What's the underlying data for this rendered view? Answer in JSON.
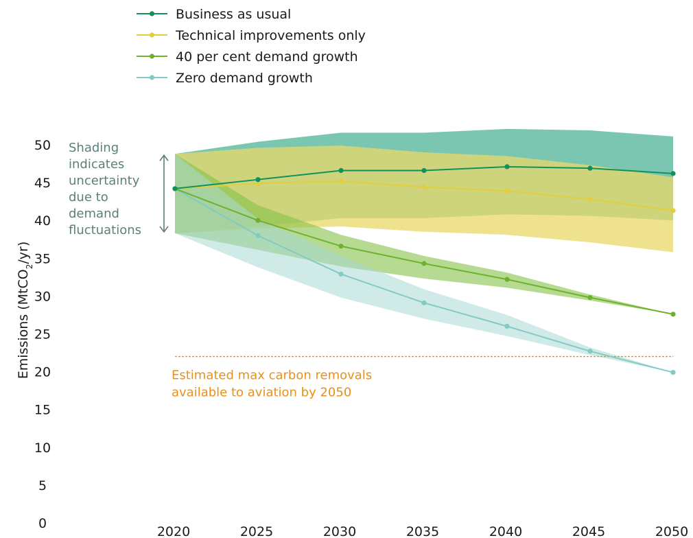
{
  "chart_data": {
    "type": "line",
    "title": "",
    "xlabel": "",
    "ylabel": "Emissions (MtCO",
    "ylabel_subscript": "2",
    "ylabel_suffix": "/yr)",
    "x": [
      2020,
      2025,
      2030,
      2035,
      2040,
      2045,
      2050
    ],
    "x_ticks": [
      "2020",
      "2025",
      "2030",
      "2035",
      "2040",
      "2045",
      "2050"
    ],
    "y_ticks": [
      "0",
      "5",
      "10",
      "15",
      "20",
      "25",
      "30",
      "35",
      "40",
      "45",
      "50"
    ],
    "xlim": [
      2020,
      2050
    ],
    "ylim": [
      0,
      50
    ],
    "grid": false,
    "legend_position": "top-left",
    "series": [
      {
        "name": "Business as usual",
        "color": "#11915a",
        "band_color": "#5ab89e",
        "values": [
          44.2,
          45.4,
          46.6,
          46.6,
          47.1,
          46.9,
          46.2
        ],
        "band_upper": [
          48.8,
          50.4,
          51.6,
          51.6,
          52.1,
          51.9,
          51.1
        ],
        "band_lower": [
          38.3,
          39.2,
          40.3,
          40.3,
          40.8,
          40.6,
          40.0
        ]
      },
      {
        "name": "Technical improvements only",
        "color": "#e3cd3f",
        "band_color": "#e9d86a",
        "values": [
          44.2,
          44.9,
          45.2,
          44.4,
          43.9,
          42.8,
          41.3
        ],
        "band_upper": [
          48.8,
          49.6,
          49.9,
          49.0,
          48.5,
          47.3,
          45.7
        ],
        "band_lower": [
          38.3,
          38.9,
          39.2,
          38.5,
          38.1,
          37.1,
          35.8
        ]
      },
      {
        "name": "40 per cent demand growth",
        "color": "#6db12e",
        "band_color": "#86c24a",
        "values": [
          44.2,
          40.0,
          36.6,
          34.3,
          32.2,
          29.8,
          27.6
        ],
        "band_upper": [
          48.8,
          42.0,
          38.1,
          35.3,
          33.1,
          30.2,
          27.6
        ],
        "band_lower": [
          38.3,
          36.1,
          33.9,
          32.3,
          31.1,
          29.4,
          27.6
        ]
      },
      {
        "name": "Zero demand growth",
        "color": "#82cac4",
        "band_color": "#a7d9d4",
        "values": [
          44.2,
          38.0,
          32.9,
          29.1,
          26.0,
          22.7,
          19.9
        ],
        "band_upper": [
          48.8,
          40.2,
          35.3,
          30.9,
          27.5,
          23.2,
          19.9
        ],
        "band_lower": [
          38.3,
          33.8,
          29.8,
          27.0,
          24.7,
          22.2,
          19.9
        ]
      }
    ],
    "reference_line": {
      "value": 22,
      "color": "#e8901a",
      "label_lines": [
        "Estimated max carbon removals",
        "available to aviation by 2050"
      ]
    },
    "annotation": {
      "lines": [
        "Shading",
        "indicates",
        "uncertainty",
        "due to",
        "demand",
        "fluctuations"
      ],
      "arrow_from": 48.8,
      "arrow_to": 38.3,
      "color": "#5b7f7a"
    }
  }
}
